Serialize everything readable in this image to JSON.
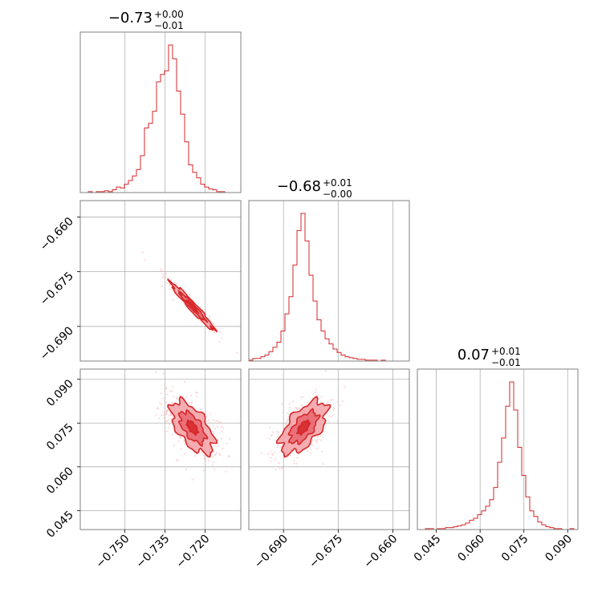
{
  "colors": {
    "accent": "#d62728",
    "contour_fill": "#f4a5ab",
    "contour_fill_dark": "#e7626b",
    "scatter": "#f4b9be"
  },
  "chart_data": {
    "type": "corner",
    "parameters": 3,
    "titles": [
      {
        "main": "−0.73",
        "sup": "+0.00",
        "sub": "−0.01"
      },
      {
        "main": "−0.68",
        "sup": "+0.01",
        "sub": "−0.00"
      },
      {
        "main": "0.07",
        "sup": "+0.01",
        "sub": "−0.01"
      }
    ],
    "ranges": [
      [
        -0.7667,
        -0.7067
      ],
      [
        -0.6995,
        -0.6555
      ],
      [
        0.0385,
        0.0935
      ]
    ],
    "ticks": [
      {
        "values": [
          -0.75,
          -0.735,
          -0.72
        ],
        "labels": [
          "−0.750",
          "−0.735",
          "−0.720"
        ]
      },
      {
        "values": [
          -0.69,
          -0.675,
          -0.66
        ],
        "labels": [
          "−0.690",
          "−0.675",
          "−0.660"
        ]
      },
      {
        "values": [
          0.045,
          0.06,
          0.075,
          0.09
        ],
        "labels": [
          "0.045",
          "0.060",
          "0.075",
          "0.090"
        ]
      }
    ],
    "histograms": [
      {
        "counts": [
          0,
          0,
          1,
          0,
          1,
          1,
          2,
          1,
          3,
          6,
          5,
          9,
          13,
          18,
          25,
          40,
          70,
          75,
          88,
          120,
          128,
          132,
          160,
          145,
          110,
          85,
          55,
          30,
          22,
          16,
          9,
          6,
          4,
          3,
          1,
          1,
          0,
          0,
          0,
          0
        ]
      },
      {
        "counts": [
          1,
          3,
          3,
          5,
          7,
          11,
          16,
          22,
          35,
          55,
          75,
          112,
          152,
          172,
          140,
          100,
          70,
          48,
          35,
          26,
          20,
          14,
          10,
          7,
          5,
          4,
          3,
          2,
          2,
          1,
          1,
          1,
          0,
          1,
          0,
          0,
          0,
          0,
          0,
          0
        ]
      },
      {
        "counts": [
          0,
          0,
          1,
          1,
          0,
          1,
          1,
          2,
          2,
          3,
          4,
          5,
          7,
          10,
          12,
          16,
          20,
          25,
          32,
          45,
          72,
          98,
          132,
          158,
          128,
          88,
          58,
          35,
          20,
          14,
          8,
          5,
          3,
          2,
          1,
          1,
          0,
          0,
          1,
          0
        ]
      }
    ],
    "correlations": [
      [
        1,
        -0.97,
        -0.6
      ],
      [
        -0.97,
        1,
        0.6
      ],
      [
        -0.6,
        0.6,
        1
      ]
    ],
    "means": [
      -0.7248,
      -0.6845,
      0.0735
    ],
    "stds": [
      0.004,
      0.0032,
      0.0045
    ],
    "grid": true
  }
}
